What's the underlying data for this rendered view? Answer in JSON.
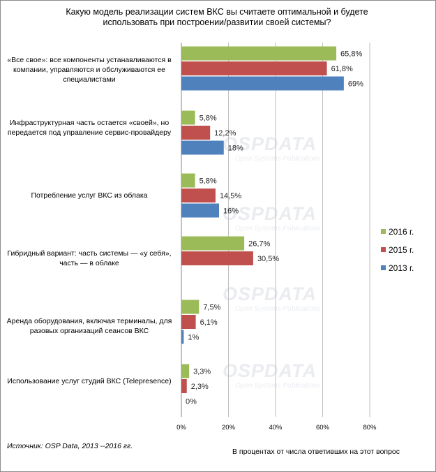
{
  "chart_data": {
    "type": "bar",
    "orientation": "horizontal",
    "title": "Какую модель реализации систем ВКС вы считаете оптимальной и будете использовать при построении/развитии своей системы?",
    "categories": [
      "«Все свое»: все компоненты устанавливаются в компании, управляются и обслуживаются ее специалистами",
      "Инфраструктурная часть остается «своей», но передается под управление сервис-провайдеру",
      "Потребление услуг ВКС из облака",
      "Гибридный вариант: часть системы — «у себя», часть — в облаке",
      "Аренда оборудования, включая терминалы, для разовых организаций сеансов ВКС",
      "Использование услуг студий ВКС (Telepresence)"
    ],
    "series": [
      {
        "name": "2016 г.",
        "color": "#9bbb59",
        "values": [
          65.8,
          5.8,
          5.8,
          26.7,
          7.5,
          3.3
        ],
        "labels": [
          "65,8%",
          "5,8%",
          "5,8%",
          "26,7%",
          "7,5%",
          "3,3%"
        ]
      },
      {
        "name": "2015 г.",
        "color": "#c0504d",
        "values": [
          61.8,
          12.2,
          14.5,
          30.5,
          6.1,
          2.3
        ],
        "labels": [
          "61,8%",
          "12,2%",
          "14,5%",
          "30,5%",
          "6,1%",
          "2,3%"
        ]
      },
      {
        "name": "2013 г.",
        "color": "#4f81bd",
        "values": [
          69,
          18,
          16,
          null,
          1,
          0
        ],
        "labels": [
          "69%",
          "18%",
          "16%",
          "",
          "1%",
          "0%"
        ]
      }
    ],
    "xlim": [
      0,
      80
    ],
    "xticks": [
      0,
      20,
      40,
      60,
      80
    ],
    "xtick_labels": [
      "0%",
      "20%",
      "40%",
      "60%",
      "80%"
    ],
    "grid": true,
    "legend_position": "right"
  },
  "watermark": {
    "main": "OSPDATA",
    "sub": "Open Systems Publications"
  },
  "source": "Источник: OSP Data, 2013 --2016 гг.",
  "note": "В процентах от числа ответивших на этот вопрос"
}
